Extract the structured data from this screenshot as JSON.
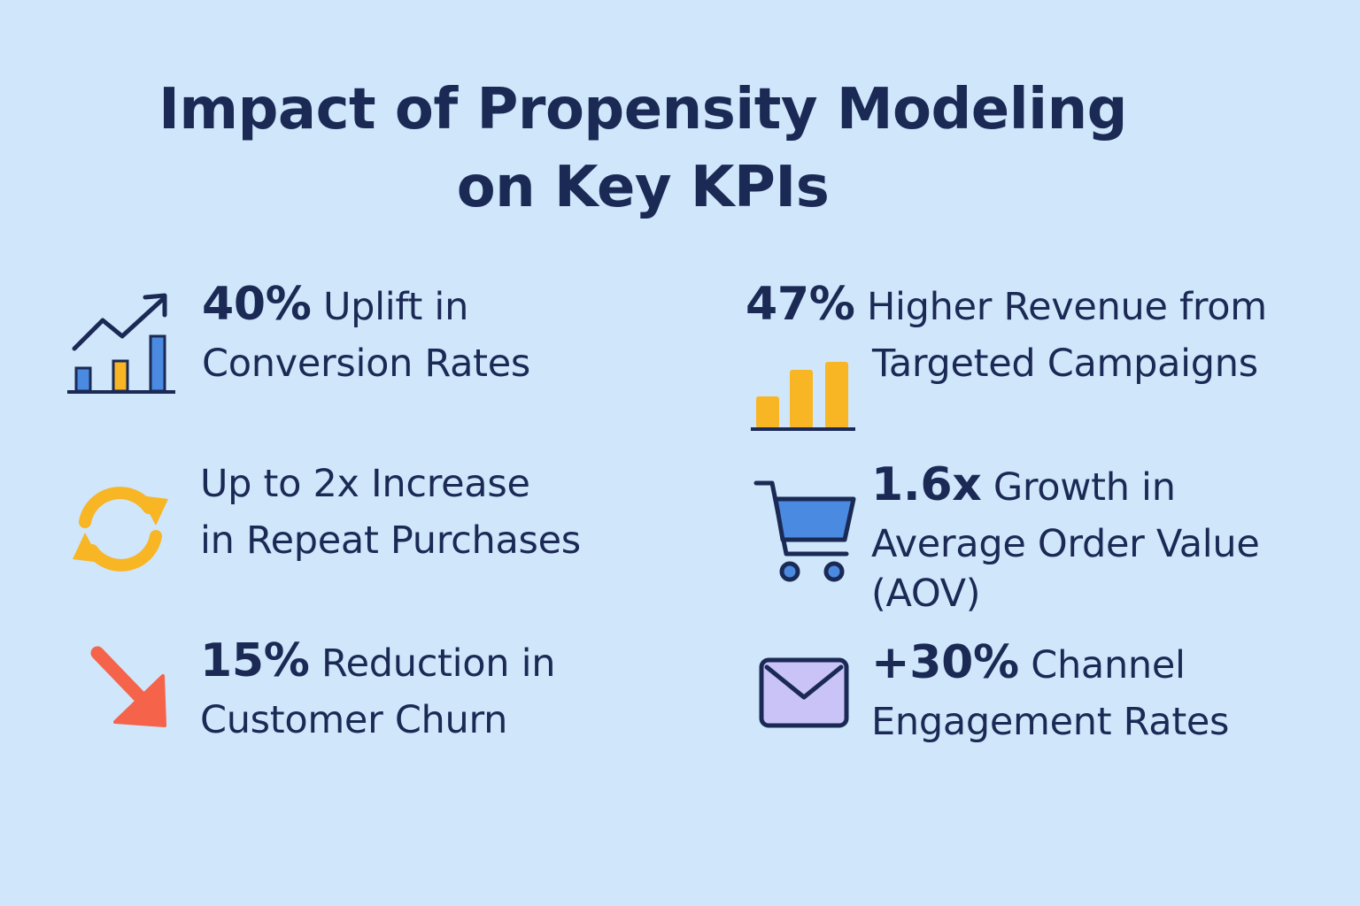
{
  "title": {
    "line1": "Impact of Propensity Modeling",
    "line2": "on Key KPIs"
  },
  "kpis": [
    {
      "value": "40%",
      "label_rest": "Uplift in",
      "label_line2": "Conversion Rates",
      "icon": "trending-bar-chart-icon"
    },
    {
      "value": "47%",
      "label_rest": "Higher Revenue from",
      "label_line2": "Targeted Campaigns",
      "icon": "bar-chart-icon"
    },
    {
      "label_line1": "Up to 2x Increase",
      "label_line2": "in Repeat Purchases",
      "icon": "refresh-cycle-icon"
    },
    {
      "value": "1.6x",
      "label_rest": "Growth in",
      "label_line2": "Average Order Value",
      "label_line3": "(AOV)",
      "icon": "shopping-cart-icon"
    },
    {
      "value": "15%",
      "label_rest": "Reduction in",
      "label_line2": "Customer Churn",
      "icon": "down-arrow-icon"
    },
    {
      "value": "+30%",
      "label_rest": "Channel",
      "label_line2": "Engagement Rates",
      "icon": "envelope-icon"
    }
  ],
  "colors": {
    "background": "#cfe6fb",
    "text": "#1b2a55",
    "blue": "#4a8ae0",
    "yellow": "#f8b524",
    "red": "#f5634a",
    "lavender": "#c9c3f7"
  }
}
